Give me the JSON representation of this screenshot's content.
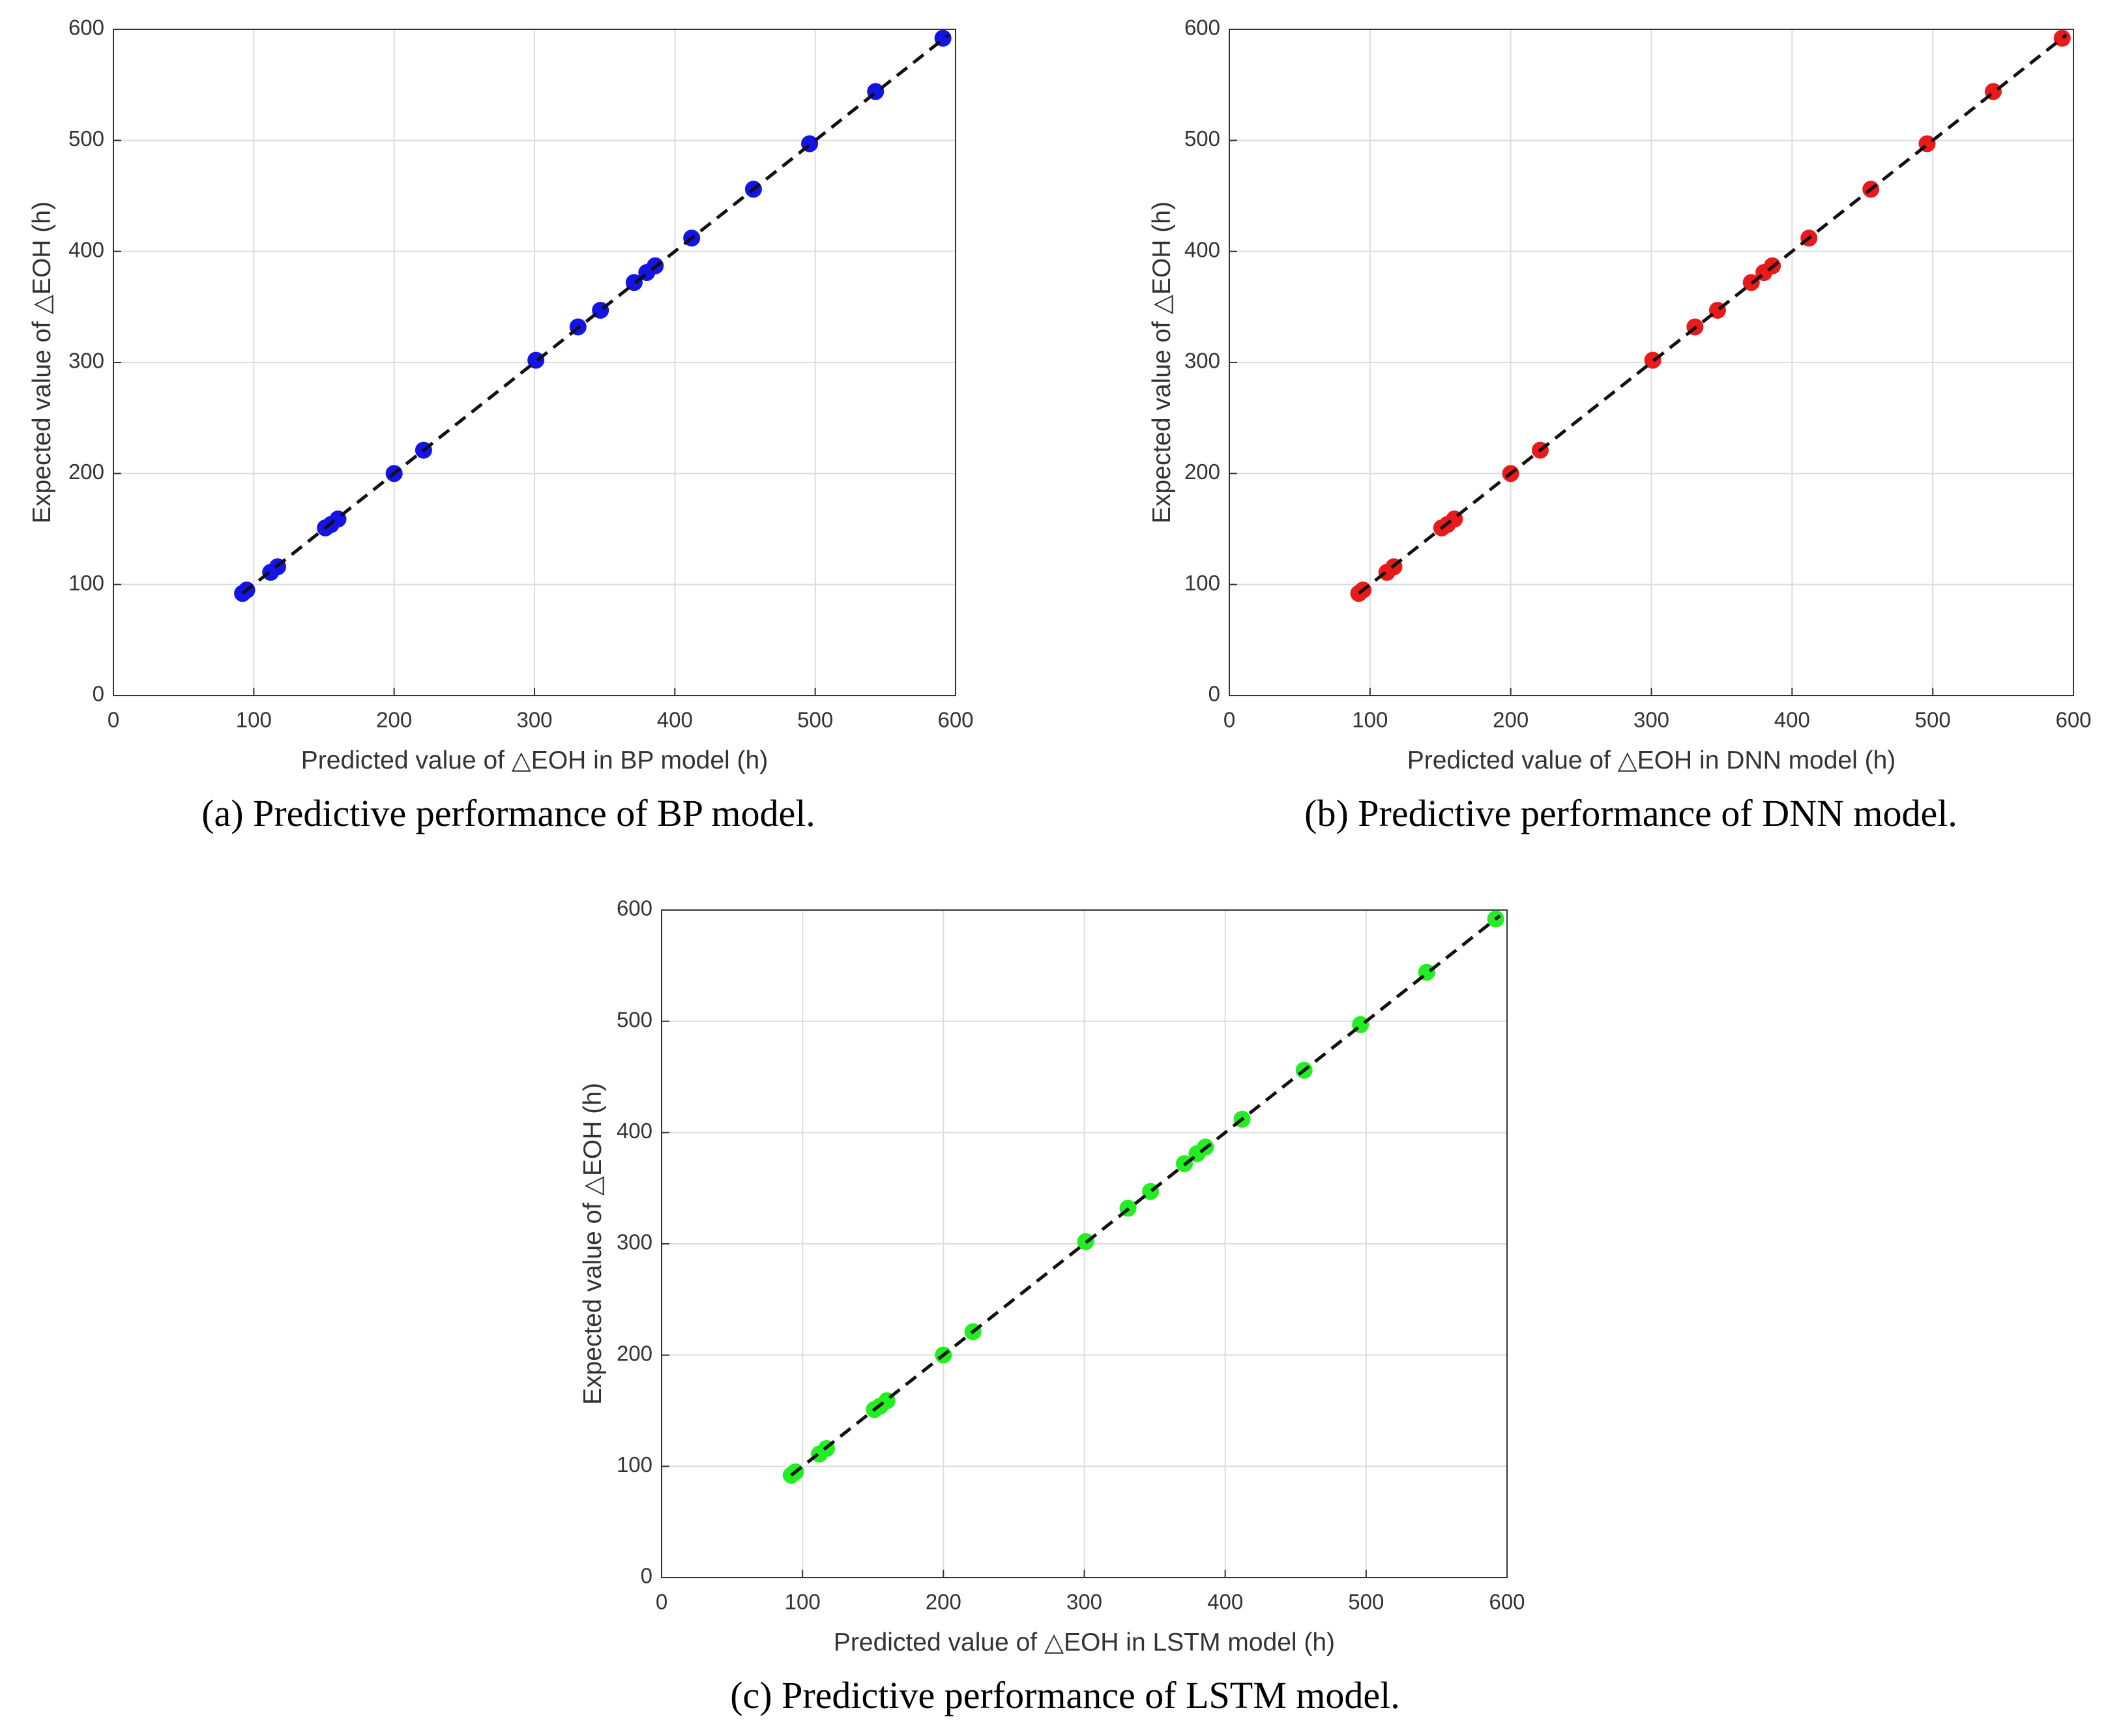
{
  "chart_data": [
    {
      "type": "scatter",
      "xlabel": "Predicted value of △EOH in BP model (h)",
      "ylabel": "Expected value of △EOH (h)",
      "caption": "(a) Predictive performance of BP model.",
      "x": [
        92,
        95,
        112,
        117,
        151,
        155,
        160,
        200,
        221,
        301,
        331,
        347,
        371,
        380,
        386,
        412,
        456,
        496,
        543,
        591
      ],
      "y": [
        92,
        95,
        111,
        116,
        151,
        154,
        159,
        200,
        221,
        302,
        332,
        347,
        372,
        381,
        387,
        412,
        456,
        497,
        544,
        592
      ],
      "color": "#1414e6",
      "fit_line": {
        "x": [
          92,
          595
        ],
        "y": [
          92,
          595
        ]
      },
      "xlim": [
        0,
        600
      ],
      "ylim": [
        0,
        600
      ],
      "xticks": [
        0,
        100,
        200,
        300,
        400,
        500,
        600
      ],
      "yticks": [
        0,
        100,
        200,
        300,
        400,
        500,
        600
      ],
      "grid": true
    },
    {
      "type": "scatter",
      "xlabel": "Predicted value of △EOH in DNN model (h)",
      "ylabel": "Expected value of △EOH (h)",
      "caption": "(b) Predictive performance of DNN model.",
      "x": [
        92,
        95,
        112,
        117,
        151,
        155,
        160,
        200,
        221,
        301,
        331,
        347,
        371,
        380,
        386,
        412,
        456,
        496,
        543,
        592
      ],
      "y": [
        92,
        95,
        111,
        116,
        151,
        154,
        159,
        200,
        221,
        302,
        332,
        347,
        372,
        381,
        387,
        412,
        456,
        497,
        544,
        592
      ],
      "color": "#e81a1a",
      "fit_line": {
        "x": [
          92,
          595
        ],
        "y": [
          92,
          595
        ]
      },
      "xlim": [
        0,
        600
      ],
      "ylim": [
        0,
        600
      ],
      "xticks": [
        0,
        100,
        200,
        300,
        400,
        500,
        600
      ],
      "yticks": [
        0,
        100,
        200,
        300,
        400,
        500,
        600
      ],
      "grid": true
    },
    {
      "type": "scatter",
      "xlabel": "Predicted value of △EOH in LSTM model (h)",
      "ylabel": "Expected value of △EOH (h)",
      "caption": "(c) Predictive performance of LSTM model.",
      "x": [
        92,
        95,
        112,
        117,
        151,
        155,
        160,
        200,
        221,
        301,
        331,
        347,
        371,
        380,
        386,
        412,
        456,
        496,
        543,
        592
      ],
      "y": [
        92,
        95,
        111,
        116,
        151,
        154,
        159,
        200,
        221,
        302,
        332,
        347,
        372,
        381,
        387,
        412,
        456,
        497,
        544,
        592
      ],
      "color": "#22ee22",
      "fit_line": {
        "x": [
          92,
          595
        ],
        "y": [
          92,
          595
        ]
      },
      "xlim": [
        0,
        600
      ],
      "ylim": [
        0,
        600
      ],
      "xticks": [
        0,
        100,
        200,
        300,
        400,
        500,
        600
      ],
      "yticks": [
        0,
        100,
        200,
        300,
        400,
        500,
        600
      ],
      "grid": true
    }
  ]
}
